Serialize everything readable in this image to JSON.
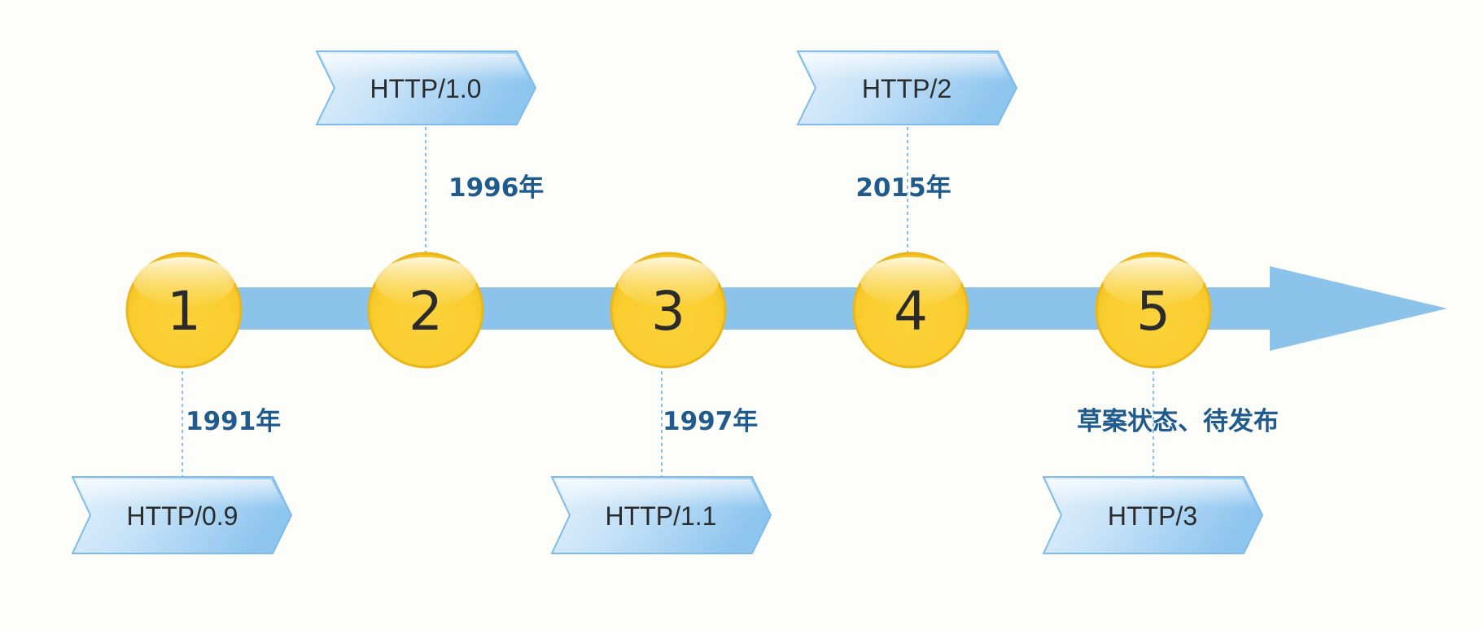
{
  "colors": {
    "background": "#fdfdf9",
    "axis": "#8bc3eb",
    "node_fill": "#f9cd2e",
    "node_edge": "#eab71a",
    "tag_light": "#e3f1fc",
    "tag_dark": "#8ec5ef",
    "tag_edge": "#7fbbe9",
    "connector": "#6aaee6",
    "year_text": "#1f5b8c",
    "label_text": "#2b2b2b"
  },
  "icons": {
    "axis_head": "arrow-head-icon",
    "node": "numbered-circle-icon",
    "tag": "chevron-tag-icon"
  },
  "stages": [
    {
      "number": "1",
      "version": "HTTP/0.9",
      "year": "1991年",
      "tag_side": "below"
    },
    {
      "number": "2",
      "version": "HTTP/1.0",
      "year": "1996年",
      "tag_side": "above"
    },
    {
      "number": "3",
      "version": "HTTP/1.1",
      "year": "1997年",
      "tag_side": "below"
    },
    {
      "number": "4",
      "version": "HTTP/2",
      "year": "2015年",
      "tag_side": "above"
    },
    {
      "number": "5",
      "version": "HTTP/3",
      "year": "草案状态、待发布",
      "tag_side": "below"
    }
  ]
}
